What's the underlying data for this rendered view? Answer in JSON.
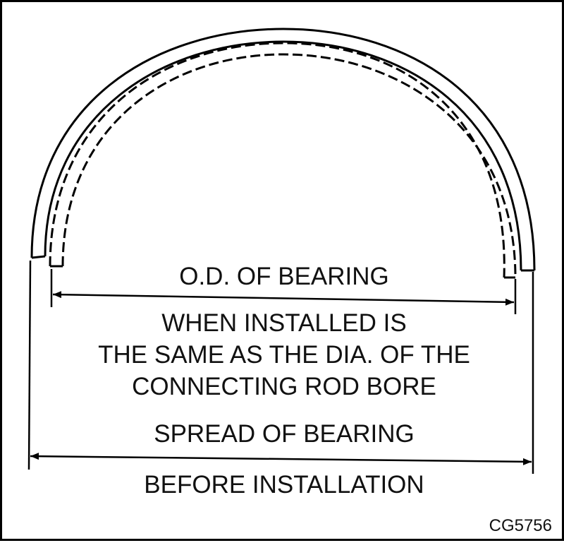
{
  "labels": {
    "od": "O.D. OF BEARING",
    "when_installed_lines": [
      "WHEN INSTALLED IS",
      "THE SAME AS THE DIA. OF THE",
      "CONNECTING ROD BORE"
    ],
    "spread": "SPREAD OF BEARING",
    "before": "BEFORE INSTALLATION"
  },
  "figure_code": "CG5756",
  "colors": {
    "ink": "#000000",
    "background": "#ffffff"
  }
}
